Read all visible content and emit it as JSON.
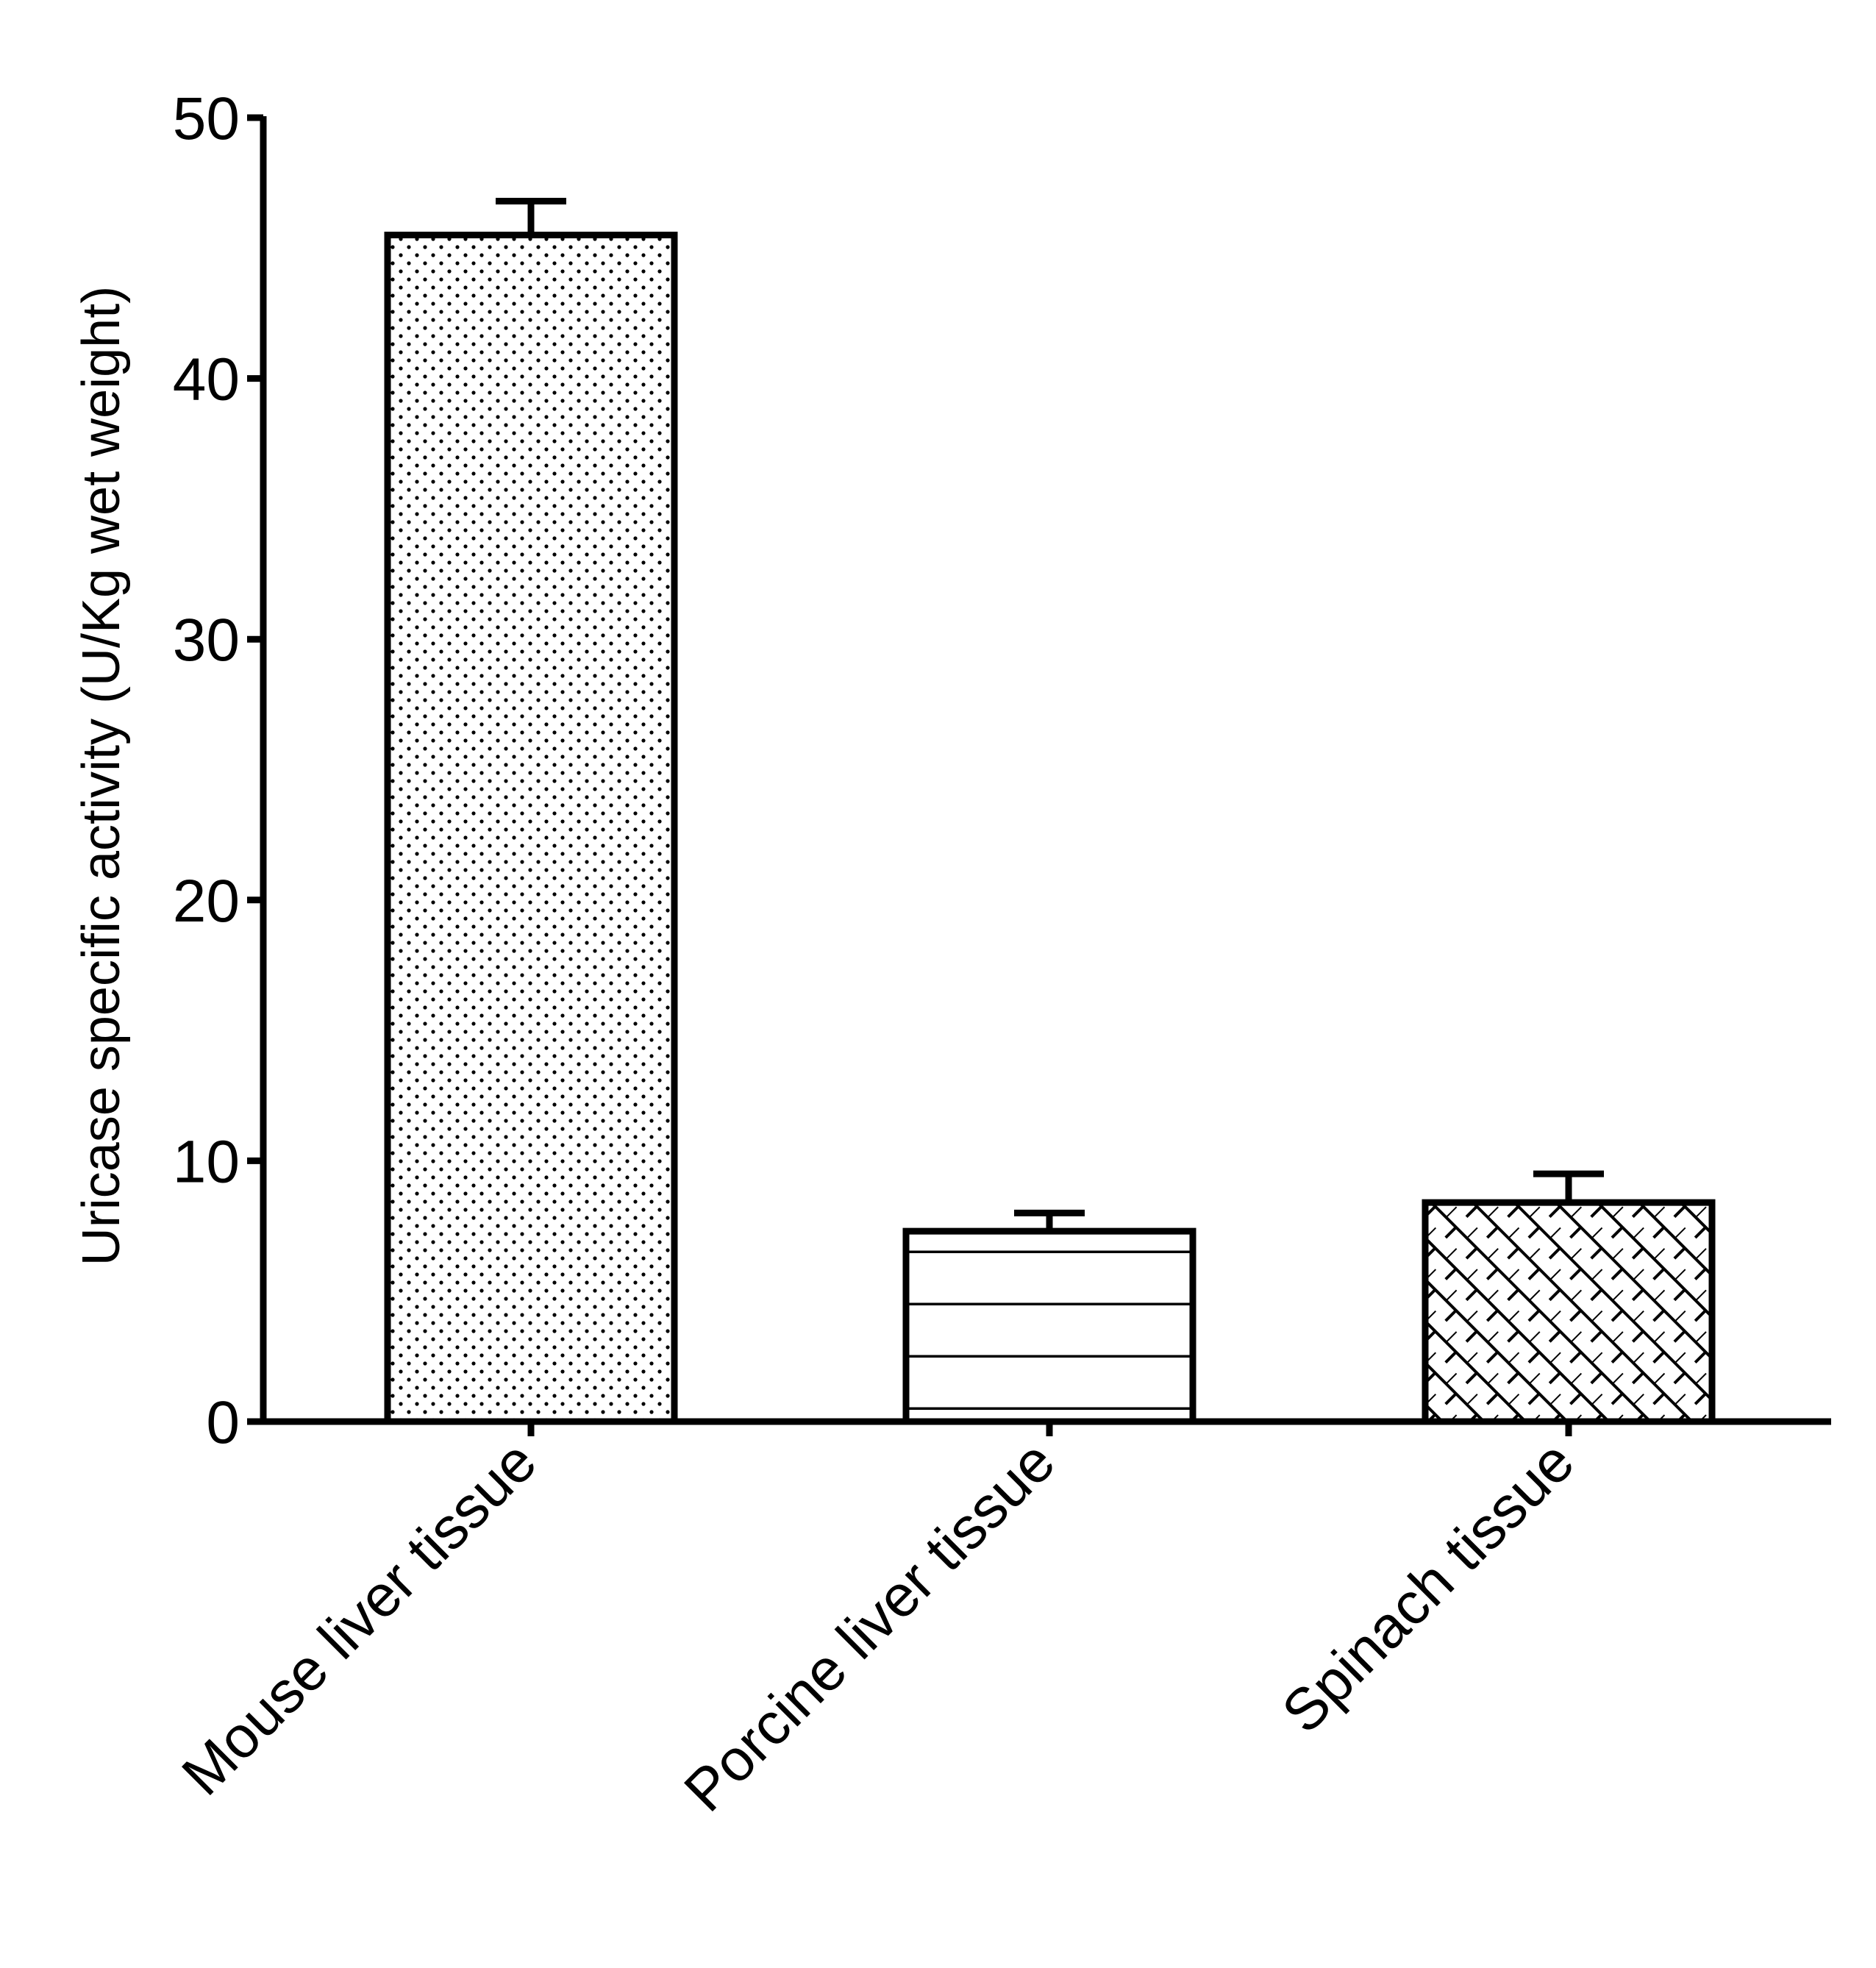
{
  "chart_data": {
    "type": "bar",
    "title": "",
    "xlabel": "",
    "ylabel": "Uricase specific activity (U/Kg wet weight)",
    "ylim": [
      0,
      50
    ],
    "yticks": [
      0,
      10,
      20,
      30,
      40,
      50
    ],
    "categories": [
      "Mouse liver tissue",
      "Porcine liver tissue",
      "Spinach tissue"
    ],
    "values": [
      45.5,
      7.3,
      8.4
    ],
    "errors": [
      1.3,
      0.7,
      1.1
    ],
    "patterns": [
      "dots",
      "horizontal-lines",
      "crosshatch"
    ],
    "grid": false,
    "legend": "none",
    "colors": {
      "bar_fill": "#ffffff",
      "bar_outline": "#000000",
      "axis": "#000000"
    }
  }
}
